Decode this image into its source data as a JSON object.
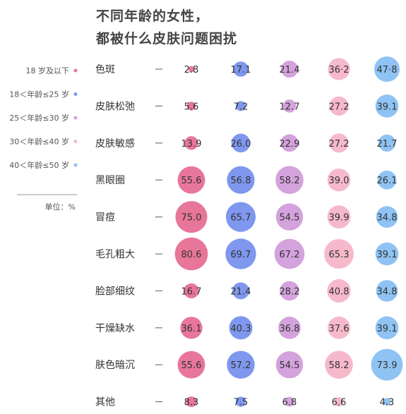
{
  "title": [
    "不同年龄的女性，",
    "都被什么皮肤问题困扰"
  ],
  "colors": [
    "#e8769a",
    "#7f97ee",
    "#d4a2dc",
    "#f6b9cb",
    "#8ec3f3"
  ],
  "chart_data": {
    "type": "bubble-grid",
    "unit_label": "单位：%",
    "legend": [
      "18 岁及以下",
      "18＜年龄≤25 岁",
      "25＜年龄≤30 岁",
      "30＜年龄≤40 岁",
      "40＜年龄≤50 岁"
    ],
    "categories": [
      "色斑",
      "皮肤松弛",
      "皮肤敏感",
      "黑眼圈",
      "冒痘",
      "毛孔粗大",
      "脸部细纹",
      "干燥缺水",
      "肤色暗沉",
      "其他"
    ],
    "series": [
      {
        "name": "18 岁及以下",
        "values": [
          2.8,
          5.6,
          13.9,
          55.6,
          75.0,
          80.6,
          16.7,
          36.1,
          55.6,
          8.3
        ],
        "labels": [
          "2.8",
          "5.6",
          "13.9",
          "55.6",
          "75.0",
          "80.6",
          "16.7",
          "36.1",
          "55.6",
          "8.3"
        ]
      },
      {
        "name": "18＜年龄≤25 岁",
        "values": [
          17.1,
          7.2,
          26.0,
          56.8,
          65.7,
          69.7,
          21.4,
          40.3,
          57.2,
          7.5
        ],
        "labels": [
          "17.1",
          "7.2",
          "26.0",
          "56.8",
          "65.7",
          "69.7",
          "21.4",
          "40.3",
          "57.2",
          "7.5"
        ]
      },
      {
        "name": "25＜年龄≤30 岁",
        "values": [
          21.4,
          12.7,
          22.9,
          58.2,
          54.5,
          67.2,
          28.2,
          36.8,
          54.5,
          6.8
        ],
        "labels": [
          "21.4",
          "12.7",
          "22.9",
          "58.2",
          "54.5",
          "67.2",
          "28.2",
          "36.8",
          "54.5",
          "6.8"
        ]
      },
      {
        "name": "30＜年龄≤40 岁",
        "values": [
          36.2,
          27.2,
          27.2,
          39.0,
          39.9,
          65.3,
          40.8,
          37.6,
          58.2,
          6.6
        ],
        "labels": [
          "36·2",
          "27.2",
          "27.2",
          "39.0",
          "39.9",
          "65.3",
          "40.8",
          "37.6",
          "58.2",
          "6.6"
        ]
      },
      {
        "name": "40＜年龄≤50 岁",
        "values": [
          47.8,
          39.1,
          21.7,
          26.1,
          34.8,
          39.1,
          34.8,
          39.1,
          73.9,
          4.3
        ],
        "labels": [
          "47·8",
          "39.1",
          "21.7",
          "26.1",
          "34.8",
          "39.1",
          "34.8",
          "39.1",
          "73.9",
          "4.3"
        ]
      }
    ]
  }
}
